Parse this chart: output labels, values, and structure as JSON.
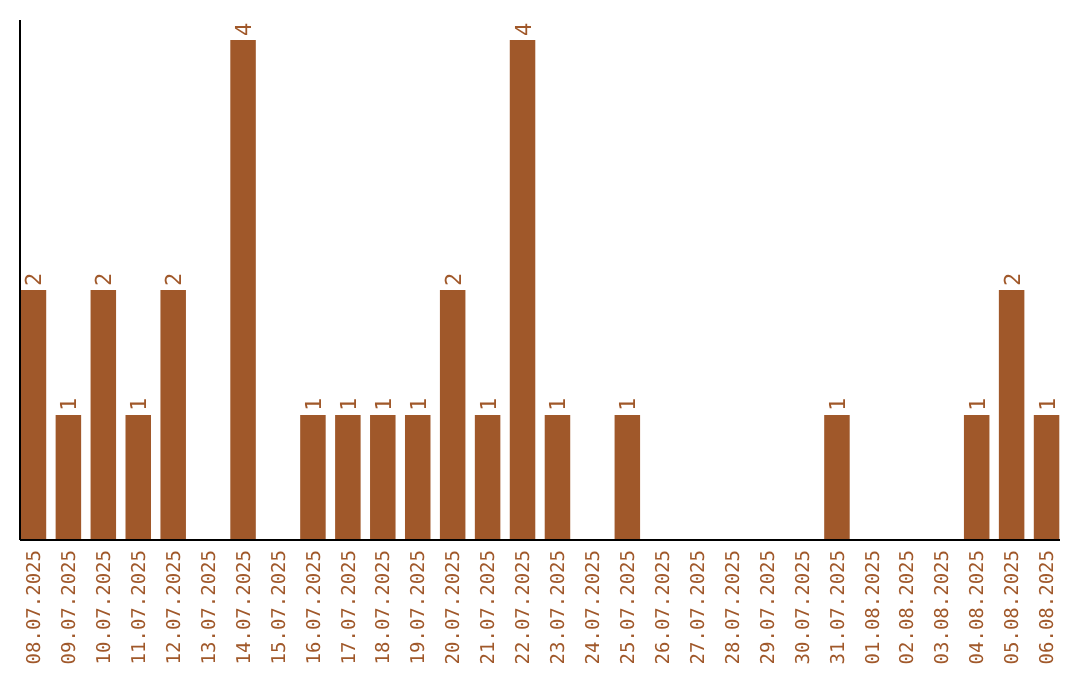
{
  "chart_data": {
    "type": "bar",
    "categories": [
      "08.07.2025",
      "09.07.2025",
      "10.07.2025",
      "11.07.2025",
      "12.07.2025",
      "13.07.2025",
      "14.07.2025",
      "15.07.2025",
      "16.07.2025",
      "17.07.2025",
      "18.07.2025",
      "19.07.2025",
      "20.07.2025",
      "21.07.2025",
      "22.07.2025",
      "23.07.2025",
      "24.07.2025",
      "25.07.2025",
      "26.07.2025",
      "27.07.2025",
      "28.07.2025",
      "29.07.2025",
      "30.07.2025",
      "31.07.2025",
      "01.08.2025",
      "02.08.2025",
      "03.08.2025",
      "04.08.2025",
      "05.08.2025",
      "06.08.2025"
    ],
    "values": [
      2,
      1,
      2,
      1,
      2,
      0,
      4,
      0,
      1,
      1,
      1,
      1,
      2,
      1,
      4,
      1,
      0,
      1,
      0,
      0,
      0,
      0,
      0,
      1,
      0,
      0,
      0,
      1,
      2,
      1
    ],
    "value_labels": [
      "2",
      "1",
      "2",
      "1",
      "2",
      null,
      "4",
      null,
      "1",
      "1",
      "1",
      "1",
      "2",
      "1",
      "4",
      "1",
      null,
      "1",
      null,
      null,
      null,
      null,
      null,
      "1",
      null,
      null,
      null,
      "1",
      "2",
      "1"
    ],
    "color": "#a0582a",
    "grid": false
  }
}
